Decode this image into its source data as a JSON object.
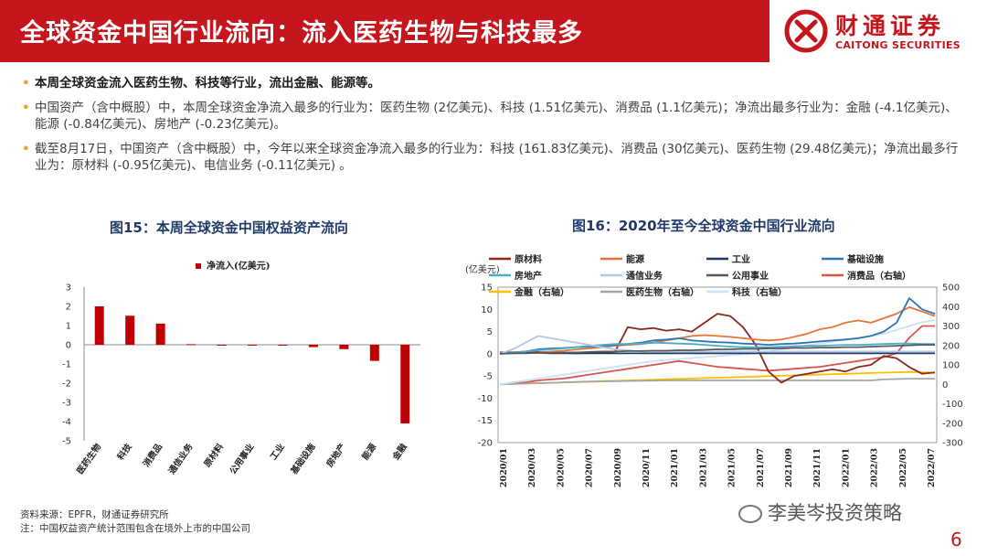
{
  "header": {
    "title": "全球资金中国行业流向：流入医药生物与科技最多",
    "logo_cn": "财通证券",
    "logo_en": "CAITONG SECURITIES",
    "brand_color": "#c5161d"
  },
  "bullets": [
    "本周全球资金流入医药生物、科技等行业，流出金融、能源等。",
    "中国资产（含中概股）中，本周全球资金净流入最多的行业为：医药生物 (2亿美元)、科技 (1.51亿美元)、消费品 (1.1亿美元)；净流出最多行业为：金融 (-4.1亿美元)、能源 (-0.84亿美元)、房地产 (-0.23亿美元)。",
    "截至8月17日，中国资产（含中概股）中，今年以来全球资金净流入最多的行业为：科技 (161.83亿美元)、消费品 (30亿美元)、医药生物 (29.48亿美元)；净流出最多行业为：原材料 (-0.95亿美元)、电信业务 (-0.11亿美元) 。"
  ],
  "chart_data": [
    {
      "type": "bar",
      "title": "图15：本周全球资金中国权益资产流向",
      "series": [
        {
          "name": "净流入(亿美元)",
          "color": "#c00000",
          "values": [
            2.0,
            1.51,
            1.1,
            0.03,
            0.0,
            0.0,
            0.0,
            -0.12,
            -0.23,
            -0.84,
            -4.1
          ]
        }
      ],
      "categories": [
        "医药生物",
        "科技",
        "消费品",
        "通信业务",
        "原材料",
        "公用事业",
        "工业",
        "基础设施",
        "房地产",
        "能源",
        "金融"
      ],
      "ylim": [
        -5,
        3
      ],
      "yticks": [
        "3",
        "2",
        "1",
        "0",
        "-1",
        "-2",
        "-3",
        "-4",
        "-5"
      ],
      "grid": false,
      "legend": "top"
    },
    {
      "type": "line",
      "title": "图16：2020年至今全球资金中国行业流向",
      "ylabel": "(亿美元)",
      "ylim": [
        -20,
        15
      ],
      "y2lim": [
        -300,
        500
      ],
      "yticks": [
        "15",
        "10",
        "5",
        "0",
        "-5",
        "-10",
        "-15",
        "-20"
      ],
      "y2ticks": [
        "500",
        "400",
        "300",
        "200",
        "100",
        "0",
        "-100",
        "-200",
        "-300"
      ],
      "xticks": [
        "2020/01",
        "2020/03",
        "2020/05",
        "2020/07",
        "2020/09",
        "2020/11",
        "2021/01",
        "2021/03",
        "2021/05",
        "2021/07",
        "2021/09",
        "2021/11",
        "2022/01",
        "2022/03",
        "2022/05",
        "2022/07"
      ],
      "legend": "top",
      "series": [
        {
          "name": "原材料",
          "axis": "left",
          "color": "#8b2a1a",
          "values": [
            0,
            0.3,
            0.5,
            0.4,
            0.3,
            0.2,
            0.1,
            0.2,
            0.4,
            0.5,
            6.0,
            5.5,
            5.8,
            5.2,
            5.5,
            5.0,
            7.0,
            9.0,
            8.5,
            6.0,
            2.0,
            -4.0,
            -6.5,
            -5.0,
            -4.5,
            -4.0,
            -3.5,
            -4.0,
            -3.0,
            -2.5,
            -0.5,
            -1.0,
            -3.0,
            -4.5,
            -4.2
          ]
        },
        {
          "name": "能源",
          "axis": "left",
          "color": "#e8743b",
          "values": [
            0,
            0.1,
            0.2,
            0.3,
            0.5,
            0.7,
            1.0,
            1.2,
            1.5,
            1.8,
            2.0,
            2.2,
            2.5,
            3.0,
            3.5,
            4.0,
            4.2,
            4.0,
            3.8,
            3.5,
            3.2,
            3.0,
            3.2,
            3.8,
            4.5,
            5.5,
            6.0,
            7.0,
            7.5,
            7.0,
            8.0,
            9.0,
            10.5,
            9.5,
            8.5
          ]
        },
        {
          "name": "工业",
          "axis": "left",
          "color": "#1f3864",
          "values": [
            0.3,
            0.3,
            0.2,
            0.2,
            0.1,
            0.1,
            0.1,
            0.1,
            0.1,
            0.1,
            0.1,
            0.1,
            0.1,
            0.1,
            0.1,
            0.1,
            0.1,
            0.1,
            0.1,
            0.1,
            0.1,
            0.1,
            0.1,
            0.1,
            0.1,
            0.1,
            0.1,
            0.1,
            0.1,
            0.1,
            0.1,
            0.1,
            0.1,
            0.1,
            0.1
          ]
        },
        {
          "name": "基础设施",
          "axis": "left",
          "color": "#2e75b6",
          "values": [
            0,
            0.2,
            0.5,
            1.0,
            1.2,
            1.3,
            1.5,
            1.6,
            1.8,
            2.0,
            2.2,
            2.5,
            3.0,
            3.2,
            3.5,
            3.0,
            2.8,
            2.6,
            2.5,
            2.3,
            2.2,
            2.0,
            2.2,
            2.3,
            2.5,
            2.8,
            3.0,
            3.2,
            3.5,
            4.0,
            5.0,
            7.0,
            12.5,
            10.0,
            9.0
          ]
        },
        {
          "name": "房地产",
          "axis": "left",
          "color": "#4bacc6",
          "values": [
            0,
            0.2,
            0.5,
            0.8,
            1.0,
            1.2,
            1.5,
            1.8,
            2.0,
            2.2,
            2.2,
            2.3,
            2.5,
            2.4,
            2.3,
            2.2,
            2.0,
            1.8,
            1.6,
            1.5,
            1.5,
            1.5,
            1.6,
            1.7,
            1.8,
            1.8,
            1.9,
            2.0,
            2.0,
            2.1,
            2.2,
            2.3,
            2.3,
            2.2,
            2.2
          ]
        },
        {
          "name": "通信业务",
          "axis": "left",
          "color": "#b4c7e7",
          "values": [
            0,
            1.0,
            2.5,
            4.0,
            3.5,
            3.0,
            2.5,
            2.0,
            1.5,
            1.0,
            0.8,
            0.5,
            0.5,
            0.5,
            0.5,
            0.5,
            0.5,
            0.5,
            0.5,
            0.5,
            0.5,
            0.5,
            0.5,
            0.5,
            0.5,
            0.5,
            0.5,
            0.5,
            0.5,
            0.5,
            0.5,
            0.5,
            0.5,
            0.5,
            0.5
          ]
        },
        {
          "name": "公用事业",
          "axis": "left",
          "color": "#595959",
          "values": [
            0,
            0.1,
            0.1,
            0.2,
            0.2,
            0.3,
            0.3,
            0.4,
            0.5,
            0.5,
            0.6,
            0.6,
            0.7,
            0.7,
            0.8,
            0.8,
            0.9,
            1.0,
            1.0,
            1.1,
            1.1,
            1.2,
            1.2,
            1.3,
            1.3,
            1.4,
            1.4,
            1.5,
            1.5,
            1.6,
            1.7,
            1.8,
            1.9,
            2.0,
            2.0
          ]
        },
        {
          "name": "消费品（右轴）",
          "axis": "right",
          "color": "#d9534f",
          "values": [
            0,
            5,
            10,
            20,
            25,
            30,
            40,
            50,
            60,
            70,
            80,
            90,
            100,
            110,
            120,
            110,
            100,
            90,
            85,
            80,
            75,
            70,
            75,
            80,
            85,
            90,
            100,
            110,
            120,
            130,
            140,
            160,
            240,
            300,
            300
          ]
        },
        {
          "name": "金融（右轴）",
          "axis": "right",
          "color": "#ffc000",
          "values": [
            0,
            2,
            4,
            6,
            8,
            10,
            12,
            14,
            16,
            18,
            20,
            22,
            24,
            26,
            28,
            30,
            32,
            34,
            36,
            38,
            40,
            42,
            44,
            46,
            48,
            50,
            52,
            54,
            56,
            58,
            60,
            62,
            64,
            62,
            60
          ]
        },
        {
          "name": "医药生物（右轴）",
          "axis": "right",
          "color": "#a5a5a5",
          "values": [
            0,
            2,
            4,
            6,
            8,
            10,
            12,
            14,
            15,
            16,
            17,
            18,
            19,
            20,
            20,
            20,
            20,
            20,
            20,
            20,
            20,
            20,
            20,
            20,
            20,
            20,
            20,
            20,
            20,
            20,
            25,
            27,
            29,
            29,
            29
          ]
        },
        {
          "name": "科技（右轴）",
          "axis": "right",
          "color": "#c9e2f5",
          "values": [
            0,
            10,
            20,
            30,
            40,
            50,
            60,
            70,
            80,
            90,
            100,
            110,
            120,
            125,
            130,
            135,
            140,
            145,
            150,
            155,
            160,
            170,
            180,
            190,
            200,
            210,
            220,
            230,
            240,
            250,
            260,
            280,
            300,
            320,
            330
          ]
        }
      ]
    }
  ],
  "source": {
    "line1": "资料来源：EPFR，财通证券研究所",
    "line2": "注：中国权益资产统计范围包含在境外上市的中国公司"
  },
  "watermark": "李美岑投资策略",
  "page_number": "6"
}
